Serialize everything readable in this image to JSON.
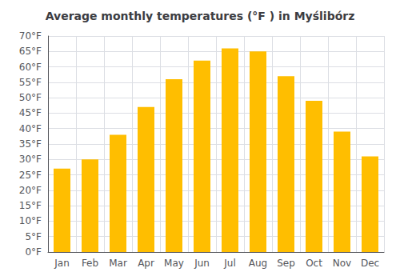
{
  "chart_data": {
    "type": "bar",
    "title": "Average monthly temperatures (°F ) in Myślibórz",
    "categories": [
      "Jan",
      "Feb",
      "Mar",
      "Apr",
      "May",
      "Jun",
      "Jul",
      "Aug",
      "Sep",
      "Oct",
      "Nov",
      "Dec"
    ],
    "values": [
      27,
      30,
      38,
      47,
      56,
      62,
      66,
      65,
      57,
      49,
      39,
      31
    ],
    "color": "#FFBE00",
    "ylim": [
      0,
      70
    ],
    "yticks": [
      {
        "value": 0,
        "label": "0°F"
      },
      {
        "value": 5,
        "label": "5°F"
      },
      {
        "value": 10,
        "label": "10°F"
      },
      {
        "value": 15,
        "label": "15°F"
      },
      {
        "value": 20,
        "label": "20°F"
      },
      {
        "value": 25,
        "label": "25°F"
      },
      {
        "value": 30,
        "label": "30°F"
      },
      {
        "value": 35,
        "label": "35°F"
      },
      {
        "value": 40,
        "label": "40°F"
      },
      {
        "value": 45,
        "label": "45°F"
      },
      {
        "value": 50,
        "label": "50°F"
      },
      {
        "value": 55,
        "label": "55°F"
      },
      {
        "value": 60,
        "label": "60°F"
      },
      {
        "value": 65,
        "label": "65°F"
      },
      {
        "value": 70,
        "label": "70°F"
      }
    ],
    "grid": true
  }
}
